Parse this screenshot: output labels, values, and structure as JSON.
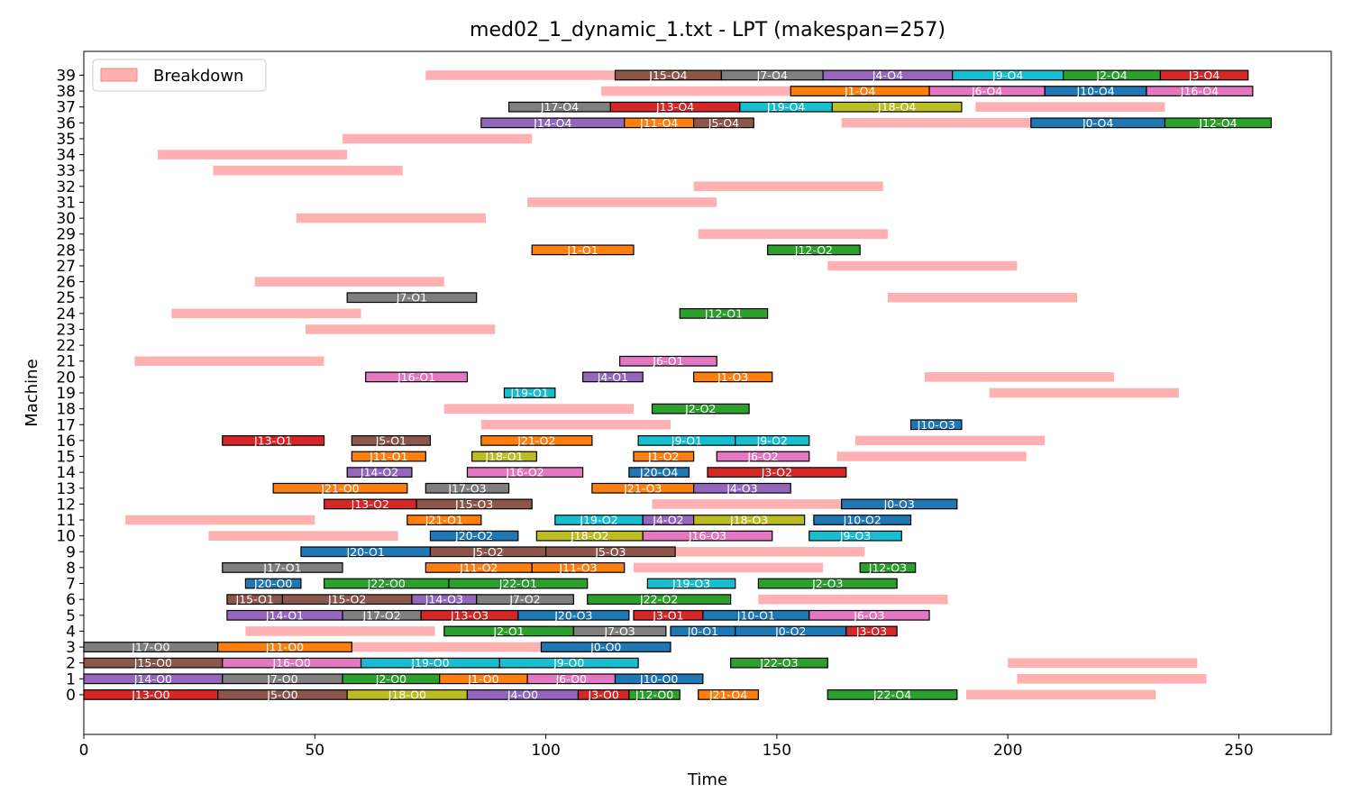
{
  "chart_data": {
    "type": "gantt",
    "title": "med02_1_dynamic_1.txt - LPT (makespan=257)",
    "xlabel": "Time",
    "ylabel": "Machine",
    "xlim": [
      0,
      270
    ],
    "ylim": [
      -2.5,
      40.5
    ],
    "xticks": [
      0,
      50,
      100,
      150,
      200,
      250
    ],
    "yticks": [
      0,
      1,
      2,
      3,
      4,
      5,
      6,
      7,
      8,
      9,
      10,
      11,
      12,
      13,
      14,
      15,
      16,
      17,
      18,
      19,
      20,
      21,
      22,
      23,
      24,
      25,
      26,
      27,
      28,
      29,
      30,
      31,
      32,
      33,
      34,
      35,
      36,
      37,
      38,
      39
    ],
    "grid": false,
    "legend": {
      "position": "top-left",
      "entries": [
        {
          "label": "Breakdown",
          "color": "#ffb0b0"
        }
      ]
    },
    "job_colors": {
      "J0": "#1f77b4",
      "J1": "#ff7f0e",
      "J2": "#2ca02c",
      "J3": "#d62728",
      "J4": "#9467bd",
      "J5": "#8c564b",
      "J6": "#e377c2",
      "J7": "#7f7f7f",
      "J8": "#bcbd22",
      "J9": "#17becf",
      "J10": "#1f77b4",
      "J11": "#ff7f0e",
      "J12": "#2ca02c",
      "J13": "#d62728",
      "J14": "#9467bd",
      "J15": "#8c564b",
      "J16": "#e377c2",
      "J17": "#7f7f7f",
      "J18": "#bcbd22",
      "J19": "#17becf",
      "J20": "#1f77b4",
      "J21": "#ff7f0e",
      "J22": "#2ca02c"
    },
    "breakdowns": [
      {
        "m": 39,
        "s": 74,
        "e": 115
      },
      {
        "m": 38,
        "s": 112,
        "e": 153
      },
      {
        "m": 37,
        "s": 193,
        "e": 234
      },
      {
        "m": 36,
        "s": 164,
        "e": 205
      },
      {
        "m": 35,
        "s": 56,
        "e": 97
      },
      {
        "m": 34,
        "s": 16,
        "e": 57
      },
      {
        "m": 33,
        "s": 28,
        "e": 69
      },
      {
        "m": 32,
        "s": 132,
        "e": 173
      },
      {
        "m": 31,
        "s": 96,
        "e": 137
      },
      {
        "m": 30,
        "s": 46,
        "e": 87
      },
      {
        "m": 29,
        "s": 133,
        "e": 174
      },
      {
        "m": 27,
        "s": 161,
        "e": 202
      },
      {
        "m": 26,
        "s": 37,
        "e": 78
      },
      {
        "m": 25,
        "s": 174,
        "e": 215
      },
      {
        "m": 24,
        "s": 19,
        "e": 60
      },
      {
        "m": 23,
        "s": 48,
        "e": 89
      },
      {
        "m": 21,
        "s": 11,
        "e": 52
      },
      {
        "m": 20,
        "s": 182,
        "e": 223
      },
      {
        "m": 19,
        "s": 196,
        "e": 237
      },
      {
        "m": 18,
        "s": 78,
        "e": 119
      },
      {
        "m": 17,
        "s": 86,
        "e": 127
      },
      {
        "m": 16,
        "s": 167,
        "e": 208
      },
      {
        "m": 15,
        "s": 163,
        "e": 204
      },
      {
        "m": 12,
        "s": 123,
        "e": 164
      },
      {
        "m": 11,
        "s": 9,
        "e": 50
      },
      {
        "m": 10,
        "s": 27,
        "e": 68
      },
      {
        "m": 9,
        "s": 128,
        "e": 169
      },
      {
        "m": 8,
        "s": 119,
        "e": 160
      },
      {
        "m": 6,
        "s": 146,
        "e": 187
      },
      {
        "m": 4,
        "s": 35,
        "e": 76
      },
      {
        "m": 3,
        "s": 58,
        "e": 99
      },
      {
        "m": 2,
        "s": 200,
        "e": 241
      },
      {
        "m": 1,
        "s": 202,
        "e": 243
      },
      {
        "m": 0,
        "s": 191,
        "e": 232
      }
    ],
    "operations": [
      {
        "m": 39,
        "s": 115,
        "e": 138,
        "job": "J15",
        "label": "J15-O4"
      },
      {
        "m": 39,
        "s": 138,
        "e": 160,
        "job": "J7",
        "label": "J7-O4"
      },
      {
        "m": 39,
        "s": 160,
        "e": 188,
        "job": "J4",
        "label": "J4-O4"
      },
      {
        "m": 39,
        "s": 188,
        "e": 212,
        "job": "J9",
        "label": "J9-O4"
      },
      {
        "m": 39,
        "s": 212,
        "e": 233,
        "job": "J2",
        "label": "J2-O4"
      },
      {
        "m": 39,
        "s": 233,
        "e": 252,
        "job": "J3",
        "label": "J3-O4"
      },
      {
        "m": 38,
        "s": 153,
        "e": 183,
        "job": "J1",
        "label": "J1-O4"
      },
      {
        "m": 38,
        "s": 183,
        "e": 208,
        "job": "J6",
        "label": "J6-O4"
      },
      {
        "m": 38,
        "s": 208,
        "e": 230,
        "job": "J10",
        "label": "J10-O4"
      },
      {
        "m": 38,
        "s": 230,
        "e": 253,
        "job": "J16",
        "label": "J16-O4"
      },
      {
        "m": 37,
        "s": 92,
        "e": 114,
        "job": "J17",
        "label": "J17-O4"
      },
      {
        "m": 37,
        "s": 114,
        "e": 142,
        "job": "J13",
        "label": "J13-O4"
      },
      {
        "m": 37,
        "s": 142,
        "e": 162,
        "job": "J19",
        "label": "J19-O4"
      },
      {
        "m": 37,
        "s": 162,
        "e": 190,
        "job": "J18",
        "label": "J18-O4"
      },
      {
        "m": 36,
        "s": 86,
        "e": 117,
        "job": "J14",
        "label": "J14-O4"
      },
      {
        "m": 36,
        "s": 117,
        "e": 132,
        "job": "J11",
        "label": "J11-O4"
      },
      {
        "m": 36,
        "s": 132,
        "e": 145,
        "job": "J5",
        "label": "J5-O4"
      },
      {
        "m": 36,
        "s": 205,
        "e": 234,
        "job": "J0",
        "label": "J0-O4"
      },
      {
        "m": 36,
        "s": 234,
        "e": 257,
        "job": "J12",
        "label": "J12-O4"
      },
      {
        "m": 28,
        "s": 97,
        "e": 119,
        "job": "J1",
        "label": "J1-O1"
      },
      {
        "m": 28,
        "s": 148,
        "e": 168,
        "job": "J12",
        "label": "J12-O2"
      },
      {
        "m": 25,
        "s": 57,
        "e": 85,
        "job": "J7",
        "label": "J7-O1"
      },
      {
        "m": 24,
        "s": 129,
        "e": 148,
        "job": "J12",
        "label": "J12-O1"
      },
      {
        "m": 21,
        "s": 116,
        "e": 137,
        "job": "J6",
        "label": "J6-O1"
      },
      {
        "m": 20,
        "s": 61,
        "e": 83,
        "job": "J16",
        "label": "J16-O1"
      },
      {
        "m": 20,
        "s": 108,
        "e": 121,
        "job": "J4",
        "label": "J4-O1"
      },
      {
        "m": 20,
        "s": 132,
        "e": 149,
        "job": "J1",
        "label": "J1-O3"
      },
      {
        "m": 19,
        "s": 91,
        "e": 102,
        "job": "J19",
        "label": "J19-O1"
      },
      {
        "m": 18,
        "s": 123,
        "e": 144,
        "job": "J2",
        "label": "J2-O2"
      },
      {
        "m": 17,
        "s": 179,
        "e": 190,
        "job": "J10",
        "label": "J10-O3"
      },
      {
        "m": 16,
        "s": 30,
        "e": 52,
        "job": "J13",
        "label": "J13-O1"
      },
      {
        "m": 16,
        "s": 58,
        "e": 75,
        "job": "J5",
        "label": "J5-O1"
      },
      {
        "m": 16,
        "s": 86,
        "e": 110,
        "job": "J21",
        "label": "J21-O2"
      },
      {
        "m": 16,
        "s": 120,
        "e": 141,
        "job": "J9",
        "label": "J9-O1"
      },
      {
        "m": 16,
        "s": 141,
        "e": 157,
        "job": "J9",
        "label": "J9-O2"
      },
      {
        "m": 15,
        "s": 58,
        "e": 74,
        "job": "J11",
        "label": "J11-O1"
      },
      {
        "m": 15,
        "s": 84,
        "e": 98,
        "job": "J18",
        "label": "J18-O1"
      },
      {
        "m": 15,
        "s": 119,
        "e": 132,
        "job": "J1",
        "label": "J1-O2"
      },
      {
        "m": 15,
        "s": 137,
        "e": 157,
        "job": "J6",
        "label": "J6-O2"
      },
      {
        "m": 14,
        "s": 57,
        "e": 71,
        "job": "J14",
        "label": "J14-O2"
      },
      {
        "m": 14,
        "s": 83,
        "e": 108,
        "job": "J16",
        "label": "J16-O2"
      },
      {
        "m": 14,
        "s": 118,
        "e": 131,
        "job": "J20",
        "label": "J20-O4"
      },
      {
        "m": 14,
        "s": 135,
        "e": 165,
        "job": "J3",
        "label": "J3-O2"
      },
      {
        "m": 13,
        "s": 41,
        "e": 70,
        "job": "J21",
        "label": "J21-O0"
      },
      {
        "m": 13,
        "s": 74,
        "e": 92,
        "job": "J17",
        "label": "J17-O3"
      },
      {
        "m": 13,
        "s": 110,
        "e": 132,
        "job": "J21",
        "label": "J21-O3"
      },
      {
        "m": 13,
        "s": 132,
        "e": 153,
        "job": "J4",
        "label": "J4-O3"
      },
      {
        "m": 12,
        "s": 52,
        "e": 72,
        "job": "J13",
        "label": "J13-O2"
      },
      {
        "m": 12,
        "s": 72,
        "e": 97,
        "job": "J15",
        "label": "J15-O3"
      },
      {
        "m": 12,
        "s": 164,
        "e": 189,
        "job": "J0",
        "label": "J0-O3"
      },
      {
        "m": 11,
        "s": 70,
        "e": 86,
        "job": "J21",
        "label": "J21-O1"
      },
      {
        "m": 11,
        "s": 102,
        "e": 121,
        "job": "J19",
        "label": "J19-O2"
      },
      {
        "m": 11,
        "s": 121,
        "e": 132,
        "job": "J4",
        "label": "J4-O2"
      },
      {
        "m": 11,
        "s": 132,
        "e": 156,
        "job": "J18",
        "label": "J18-O3"
      },
      {
        "m": 11,
        "s": 158,
        "e": 179,
        "job": "J10",
        "label": "J10-O2"
      },
      {
        "m": 10,
        "s": 75,
        "e": 94,
        "job": "J20",
        "label": "J20-O2"
      },
      {
        "m": 10,
        "s": 98,
        "e": 121,
        "job": "J18",
        "label": "J18-O2"
      },
      {
        "m": 10,
        "s": 121,
        "e": 149,
        "job": "J16",
        "label": "J16-O3"
      },
      {
        "m": 10,
        "s": 157,
        "e": 177,
        "job": "J9",
        "label": "J9-O3"
      },
      {
        "m": 9,
        "s": 47,
        "e": 75,
        "job": "J20",
        "label": "J20-O1"
      },
      {
        "m": 9,
        "s": 75,
        "e": 100,
        "job": "J5",
        "label": "J5-O2"
      },
      {
        "m": 9,
        "s": 100,
        "e": 128,
        "job": "J5",
        "label": "J5-O3"
      },
      {
        "m": 8,
        "s": 30,
        "e": 56,
        "job": "J17",
        "label": "J17-O1"
      },
      {
        "m": 8,
        "s": 74,
        "e": 97,
        "job": "J11",
        "label": "J11-O2"
      },
      {
        "m": 8,
        "s": 97,
        "e": 117,
        "job": "J11",
        "label": "J11-O3"
      },
      {
        "m": 8,
        "s": 168,
        "e": 180,
        "job": "J12",
        "label": "J12-O3"
      },
      {
        "m": 7,
        "s": 35,
        "e": 47,
        "job": "J20",
        "label": "J20-O0"
      },
      {
        "m": 7,
        "s": 52,
        "e": 79,
        "job": "J22",
        "label": "J22-O0"
      },
      {
        "m": 7,
        "s": 79,
        "e": 109,
        "job": "J22",
        "label": "J22-O1"
      },
      {
        "m": 7,
        "s": 122,
        "e": 141,
        "job": "J19",
        "label": "J19-O3"
      },
      {
        "m": 7,
        "s": 146,
        "e": 176,
        "job": "J2",
        "label": "J2-O3"
      },
      {
        "m": 6,
        "s": 31,
        "e": 43,
        "job": "J15",
        "label": "J15-O1"
      },
      {
        "m": 6,
        "s": 43,
        "e": 71,
        "job": "J15",
        "label": "J15-O2"
      },
      {
        "m": 6,
        "s": 71,
        "e": 85,
        "job": "J14",
        "label": "J14-O3"
      },
      {
        "m": 6,
        "s": 85,
        "e": 106,
        "job": "J7",
        "label": "J7-O2"
      },
      {
        "m": 6,
        "s": 109,
        "e": 140,
        "job": "J22",
        "label": "J22-O2"
      },
      {
        "m": 5,
        "s": 31,
        "e": 56,
        "job": "J14",
        "label": "J14-O1"
      },
      {
        "m": 5,
        "s": 56,
        "e": 73,
        "job": "J17",
        "label": "J17-O2"
      },
      {
        "m": 5,
        "s": 73,
        "e": 94,
        "job": "J13",
        "label": "J13-O3"
      },
      {
        "m": 5,
        "s": 94,
        "e": 118,
        "job": "J20",
        "label": "J20-O3"
      },
      {
        "m": 5,
        "s": 119,
        "e": 134,
        "job": "J3",
        "label": "J3-O1"
      },
      {
        "m": 5,
        "s": 134,
        "e": 157,
        "job": "J10",
        "label": "J10-O1"
      },
      {
        "m": 5,
        "s": 157,
        "e": 183,
        "job": "J6",
        "label": "J6-O3"
      },
      {
        "m": 4,
        "s": 78,
        "e": 106,
        "job": "J2",
        "label": "J2-O1"
      },
      {
        "m": 4,
        "s": 106,
        "e": 126,
        "job": "J7",
        "label": "J7-O3"
      },
      {
        "m": 4,
        "s": 127,
        "e": 141,
        "job": "J0",
        "label": "J0-O1"
      },
      {
        "m": 4,
        "s": 141,
        "e": 165,
        "job": "J0",
        "label": "J0-O2"
      },
      {
        "m": 4,
        "s": 165,
        "e": 176,
        "job": "J3",
        "label": "J3-O3"
      },
      {
        "m": 3,
        "s": 0,
        "e": 29,
        "job": "J17",
        "label": "J17-O0"
      },
      {
        "m": 3,
        "s": 29,
        "e": 58,
        "job": "J11",
        "label": "J11-O0"
      },
      {
        "m": 3,
        "s": 99,
        "e": 127,
        "job": "J0",
        "label": "J0-O0"
      },
      {
        "m": 2,
        "s": 0,
        "e": 30,
        "job": "J15",
        "label": "J15-O0"
      },
      {
        "m": 2,
        "s": 30,
        "e": 60,
        "job": "J16",
        "label": "J16-O0"
      },
      {
        "m": 2,
        "s": 60,
        "e": 90,
        "job": "J19",
        "label": "J19-O0"
      },
      {
        "m": 2,
        "s": 90,
        "e": 120,
        "job": "J9",
        "label": "J9-O0"
      },
      {
        "m": 2,
        "s": 140,
        "e": 161,
        "job": "J22",
        "label": "J22-O3"
      },
      {
        "m": 1,
        "s": 0,
        "e": 30,
        "job": "J14",
        "label": "J14-O0"
      },
      {
        "m": 1,
        "s": 30,
        "e": 56,
        "job": "J7",
        "label": "J7-O0"
      },
      {
        "m": 1,
        "s": 56,
        "e": 77,
        "job": "J2",
        "label": "J2-O0"
      },
      {
        "m": 1,
        "s": 77,
        "e": 96,
        "job": "J1",
        "label": "J1-O0"
      },
      {
        "m": 1,
        "s": 96,
        "e": 115,
        "job": "J6",
        "label": "J6-O0"
      },
      {
        "m": 1,
        "s": 115,
        "e": 134,
        "job": "J10",
        "label": "J10-O0"
      },
      {
        "m": 0,
        "s": 0,
        "e": 29,
        "job": "J13",
        "label": "J13-O0"
      },
      {
        "m": 0,
        "s": 29,
        "e": 57,
        "job": "J5",
        "label": "J5-O0"
      },
      {
        "m": 0,
        "s": 57,
        "e": 83,
        "job": "J18",
        "label": "J18-O0"
      },
      {
        "m": 0,
        "s": 83,
        "e": 107,
        "job": "J4",
        "label": "J4-O0"
      },
      {
        "m": 0,
        "s": 107,
        "e": 118,
        "job": "J3",
        "label": "J3-O0"
      },
      {
        "m": 0,
        "s": 118,
        "e": 129,
        "job": "J12",
        "label": "J12-O0"
      },
      {
        "m": 0,
        "s": 133,
        "e": 146,
        "job": "J21",
        "label": "J21-O4"
      },
      {
        "m": 0,
        "s": 161,
        "e": 189,
        "job": "J22",
        "label": "J22-O4"
      }
    ]
  }
}
